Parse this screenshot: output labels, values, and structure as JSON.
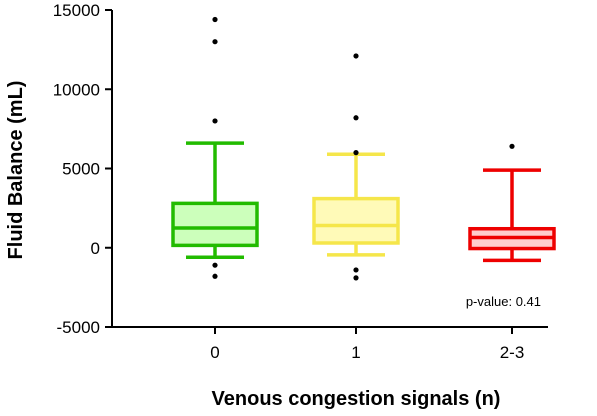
{
  "chart_data": {
    "type": "box",
    "title": "",
    "xlabel": "Venous congestion signals  (n)",
    "ylabel": "Fluid Balance  (mL)",
    "ylim": [
      -5000,
      15000
    ],
    "yticks": [
      -5000,
      0,
      5000,
      10000,
      15000
    ],
    "ytick_labels": [
      "-5000",
      "0",
      "5000",
      "10000",
      "15000"
    ],
    "categories": [
      "0",
      "1",
      "2-3"
    ],
    "grid": false,
    "legend": "none",
    "annotation": "p-value: 0.41",
    "series": [
      {
        "category": "0",
        "whisker_low": -600,
        "q1": 150,
        "median": 1250,
        "q3": 2800,
        "whisker_high": 6600,
        "outliers": [
          -1100,
          -1800,
          8000,
          13000,
          14400
        ],
        "stroke": "#22bb00",
        "fill": "#ccffbb"
      },
      {
        "category": "1",
        "whisker_low": -450,
        "q1": 300,
        "median": 1400,
        "q3": 3100,
        "whisker_high": 5900,
        "outliers": [
          -1400,
          -1900,
          6000,
          8200,
          12100
        ],
        "stroke": "#f5e64a",
        "fill": "#fffab8"
      },
      {
        "category": "2-3",
        "whisker_low": -800,
        "q1": -50,
        "median": 650,
        "q3": 1200,
        "whisker_high": 4900,
        "outliers": [
          6400
        ],
        "stroke": "#ee0000",
        "fill": "#ffcccc"
      }
    ]
  }
}
